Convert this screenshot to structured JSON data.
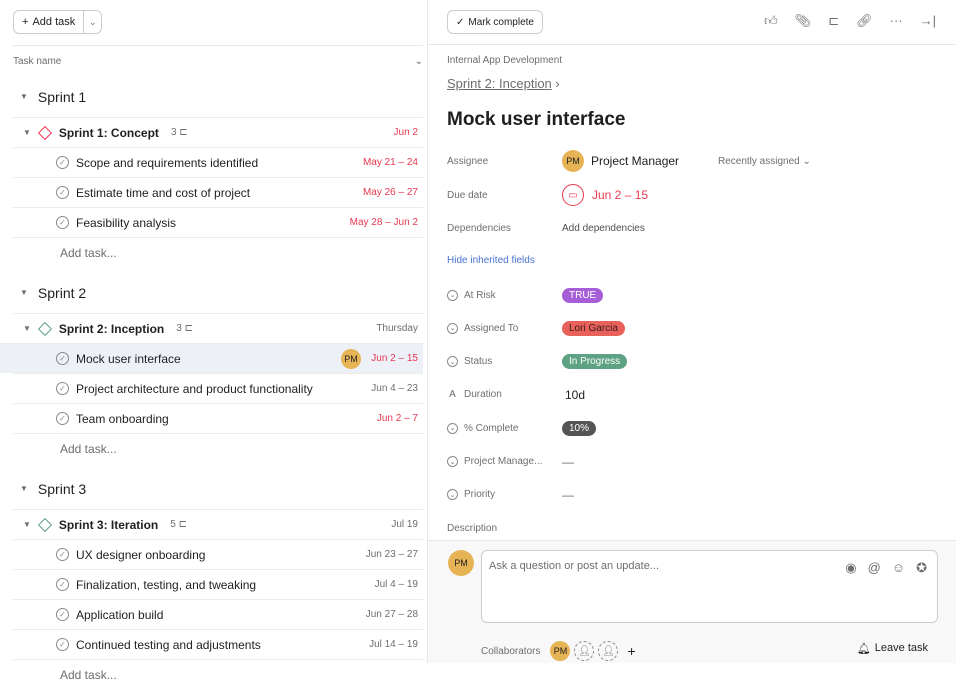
{
  "left": {
    "add_task": "Add task",
    "column_header": "Task name",
    "sections": [
      {
        "name": "Sprint 1",
        "milestone": {
          "name": "Sprint 1: Concept",
          "subtasks": "3",
          "date": "Jun 2",
          "date_red": true,
          "color": "#e8384f"
        },
        "tasks": [
          {
            "name": "Scope and requirements identified",
            "date": "May 21 – 24",
            "red": true
          },
          {
            "name": "Estimate time and cost of project",
            "date": "May 26 – 27",
            "red": true
          },
          {
            "name": "Feasibility analysis",
            "date": "May 28 – Jun 2",
            "red": true
          }
        ]
      },
      {
        "name": "Sprint 2",
        "milestone": {
          "name": "Sprint 2: Inception",
          "subtasks": "3",
          "date": "Thursday",
          "date_red": false,
          "color": "#5da283"
        },
        "tasks": [
          {
            "name": "Mock user interface",
            "date": "Jun 2 – 15",
            "red": true,
            "selected": true,
            "assignee": "PM"
          },
          {
            "name": "Project architecture and product functionality",
            "date": "Jun 4 – 23",
            "red": false
          },
          {
            "name": "Team onboarding",
            "date": "Jun 2 – 7",
            "red": true
          }
        ]
      },
      {
        "name": "Sprint 3",
        "milestone": {
          "name": "Sprint 3: Iteration",
          "subtasks": "5",
          "date": "Jul 19",
          "date_red": false,
          "color": "#5da283"
        },
        "tasks": [
          {
            "name": "UX designer onboarding",
            "date": "Jun 23 – 27",
            "red": false
          },
          {
            "name": "Finalization, testing, and tweaking",
            "date": "Jul 4 – 19",
            "red": false
          },
          {
            "name": "Application build",
            "date": "Jun 27 – 28",
            "red": false
          },
          {
            "name": "Continued testing and adjustments",
            "date": "Jul 14 – 19",
            "red": false
          }
        ]
      }
    ],
    "add_task_row": "Add task..."
  },
  "detail": {
    "mark_complete": "Mark complete",
    "project": "Internal App Development",
    "parent": "Sprint 2: Inception",
    "title": "Mock user interface",
    "assignee_label": "Assignee",
    "assignee": "Project Manager",
    "assignee_initials": "PM",
    "recently": "Recently assigned",
    "due_label": "Due date",
    "due": "Jun 2 – 15",
    "dep_label": "Dependencies",
    "dep": "Add dependencies",
    "hide_inherited": "Hide inherited fields",
    "fields": [
      {
        "label": "At Risk",
        "value": "TRUE",
        "color": "#a65ed6",
        "type": "pill"
      },
      {
        "label": "Assigned To",
        "value": "Lori Garcia",
        "color": "#e8625b",
        "type": "pill",
        "dark": true
      },
      {
        "label": "Status",
        "value": "In Progress",
        "color": "#5da283",
        "type": "pill"
      },
      {
        "label": "Duration",
        "value": "10d",
        "type": "text"
      },
      {
        "label": "% Complete",
        "value": "10%",
        "color": "#555555",
        "type": "pill"
      },
      {
        "label": "Project Manage...",
        "value": "—",
        "type": "dash"
      },
      {
        "label": "Priority",
        "value": "—",
        "type": "dash"
      }
    ],
    "description_label": "Description",
    "comment_placeholder": "Ask a question or post an update...",
    "collaborators_label": "Collaborators",
    "leave_task": "Leave task"
  }
}
